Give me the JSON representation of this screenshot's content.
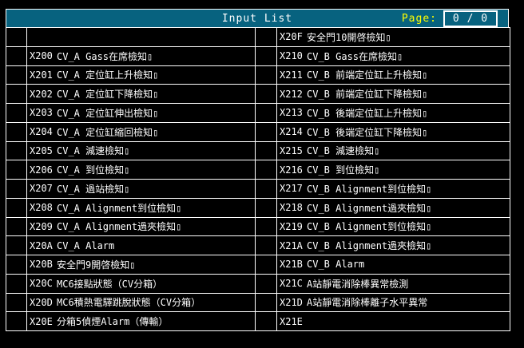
{
  "header": {
    "title": "Input List",
    "page_label": "Page:",
    "page_value": "0 / 0"
  },
  "colors": {
    "background": "#000000",
    "header_bg": "#07627f",
    "page_label_text": "#ffff00",
    "text": "#ffffff",
    "grid_lines": "#ffffff"
  },
  "table": {
    "rows": [
      {
        "left": {
          "addr": "",
          "desc": ""
        },
        "right": {
          "addr": "X20F",
          "desc": "安全門10開啓檢知▯"
        }
      },
      {
        "left": {
          "addr": "X200",
          "desc": "CV_A Gass在席檢知▯"
        },
        "right": {
          "addr": "X210",
          "desc": "CV_B Gass在席檢知▯"
        }
      },
      {
        "left": {
          "addr": "X201",
          "desc": "CV_A 定位缸上升檢知▯"
        },
        "right": {
          "addr": "X211",
          "desc": "CV_B 前端定位缸上升檢知▯"
        }
      },
      {
        "left": {
          "addr": "X202",
          "desc": "CV_A 定位缸下降檢知▯"
        },
        "right": {
          "addr": "X212",
          "desc": "CV_B 前端定位缸下降檢知▯"
        }
      },
      {
        "left": {
          "addr": "X203",
          "desc": "CV_A 定位缸伸出檢知▯"
        },
        "right": {
          "addr": "X213",
          "desc": "CV_B 後端定位缸上升檢知▯"
        }
      },
      {
        "left": {
          "addr": "X204",
          "desc": "CV_A 定位缸縮回檢知▯"
        },
        "right": {
          "addr": "X214",
          "desc": "CV_B 後端定位缸下降檢知▯"
        }
      },
      {
        "left": {
          "addr": "X205",
          "desc": "CV_A 減速檢知▯"
        },
        "right": {
          "addr": "X215",
          "desc": "CV_B 減速檢知▯"
        }
      },
      {
        "left": {
          "addr": "X206",
          "desc": "CV_A 到位檢知▯"
        },
        "right": {
          "addr": "X216",
          "desc": "CV_B 到位檢知▯"
        }
      },
      {
        "left": {
          "addr": "X207",
          "desc": "CV_A 過站檢知▯"
        },
        "right": {
          "addr": "X217",
          "desc": "CV_B Alignment到位檢知▯"
        }
      },
      {
        "left": {
          "addr": "X208",
          "desc": "CV_A Alignment到位檢知▯"
        },
        "right": {
          "addr": "X218",
          "desc": "CV_B Alignment過夾檢知▯"
        }
      },
      {
        "left": {
          "addr": "X209",
          "desc": "CV_A Alignment過夾檢知▯"
        },
        "right": {
          "addr": "X219",
          "desc": "CV_B Alignment到位檢知▯"
        }
      },
      {
        "left": {
          "addr": "X20A",
          "desc": "CV_A Alarm"
        },
        "right": {
          "addr": "X21A",
          "desc": "CV_B Alignment過夾檢知▯"
        }
      },
      {
        "left": {
          "addr": "X20B",
          "desc": "安全門9開啓檢知▯"
        },
        "right": {
          "addr": "X21B",
          "desc": "CV_B Alarm"
        }
      },
      {
        "left": {
          "addr": "X20C",
          "desc": "MC6接點狀態（CV分箱）"
        },
        "right": {
          "addr": "X21C",
          "desc": "A站靜電消除棒異常檢測"
        }
      },
      {
        "left": {
          "addr": "X20D",
          "desc": "MC6積熱電驛跳脫狀態（CV分箱）"
        },
        "right": {
          "addr": "X21D",
          "desc": "A站靜電消除棒離子水平異常"
        }
      },
      {
        "left": {
          "addr": "X20E",
          "desc": "分箱5偵煙Alarm（傳輸）"
        },
        "right": {
          "addr": "X21E",
          "desc": ""
        }
      }
    ]
  }
}
